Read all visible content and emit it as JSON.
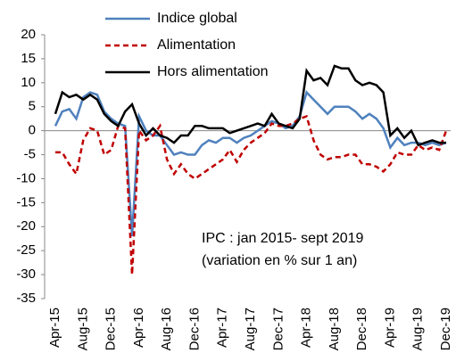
{
  "chart_data": {
    "type": "line",
    "categories": [
      "Apr-15",
      null,
      null,
      null,
      "Aug-15",
      null,
      null,
      null,
      "Dec-15",
      null,
      null,
      null,
      "Apr-16",
      null,
      null,
      null,
      "Aug-16",
      null,
      null,
      null,
      "Dec-16",
      null,
      null,
      null,
      "Apr-17",
      null,
      null,
      null,
      "Aug-17",
      null,
      null,
      null,
      "Dec-17",
      null,
      null,
      null,
      "Apr-18",
      null,
      null,
      null,
      "Aug-18",
      null,
      null,
      null,
      "Dec-18",
      null,
      null,
      null,
      "Apr-19",
      null,
      null,
      null,
      "Aug-19",
      null,
      null,
      null,
      "Dec-19"
    ],
    "series": [
      {
        "name": "Indice global",
        "color": "#4f81bd",
        "dashed": false,
        "values": [
          1,
          4,
          4.5,
          2.5,
          7,
          8,
          7.5,
          4,
          2.5,
          1.5,
          1,
          -22,
          3,
          0,
          -1,
          -1,
          -3,
          -5,
          -4.5,
          -5,
          -5,
          -3,
          -2,
          -2.5,
          -1.5,
          -1.5,
          -2.5,
          -1.5,
          -1,
          0,
          1,
          2,
          1.5,
          0.5,
          1,
          3,
          8,
          6.5,
          5,
          3.5,
          5,
          5,
          5,
          4,
          2.5,
          3.5,
          2.5,
          0.5,
          -3.5,
          -1.5,
          -3,
          -2.5,
          -2.5,
          -3,
          -2.5,
          -3,
          -2.5
        ]
      },
      {
        "name": "Alimentation",
        "color": "#c00000",
        "dashed": true,
        "values": [
          -4.5,
          -4.5,
          -7,
          -9,
          -2,
          0.5,
          0,
          -5,
          -4,
          1,
          0.5,
          -30,
          0,
          -2,
          -1,
          1,
          -6,
          -9,
          -7,
          -9,
          -10,
          -9,
          -8,
          -7,
          -6,
          -4,
          -6.5,
          -4,
          -2.5,
          -1.5,
          -0.5,
          1.5,
          1,
          1,
          1.5,
          2.5,
          3,
          -2,
          -5,
          -6,
          -5.5,
          -5.5,
          -5,
          -5,
          -7,
          -7,
          -7.5,
          -8.5,
          -7,
          -4.5,
          -5,
          -5,
          -3,
          -4,
          -3.5,
          -4,
          0
        ]
      },
      {
        "name": "Hors alimentation",
        "color": "#000000",
        "dashed": false,
        "values": [
          3.5,
          8,
          7,
          7.5,
          6.5,
          7.5,
          6.5,
          3.5,
          2,
          1,
          4,
          5.5,
          1.5,
          -1,
          0.5,
          -1,
          -1.5,
          -2.5,
          -1,
          -1,
          1,
          1,
          0.5,
          0.5,
          0.5,
          -0.5,
          0,
          0.5,
          1,
          1.5,
          1,
          3.5,
          1.5,
          1,
          0.5,
          2.5,
          12.5,
          10.5,
          11,
          9.5,
          13.5,
          13,
          13,
          10.5,
          9.5,
          10,
          9.5,
          8,
          -1,
          0.5,
          -1.5,
          0,
          -3,
          -2.5,
          -2,
          -2.5,
          -2.5
        ]
      }
    ],
    "annotations": [
      "IPC : jan 2015- sept 2019",
      "(variation en % sur 1 an)"
    ],
    "ylim": [
      -35,
      20
    ],
    "yticks": [
      -35,
      -30,
      -25,
      -20,
      -15,
      -10,
      -5,
      0,
      5,
      10,
      15,
      20
    ],
    "grid": false
  }
}
